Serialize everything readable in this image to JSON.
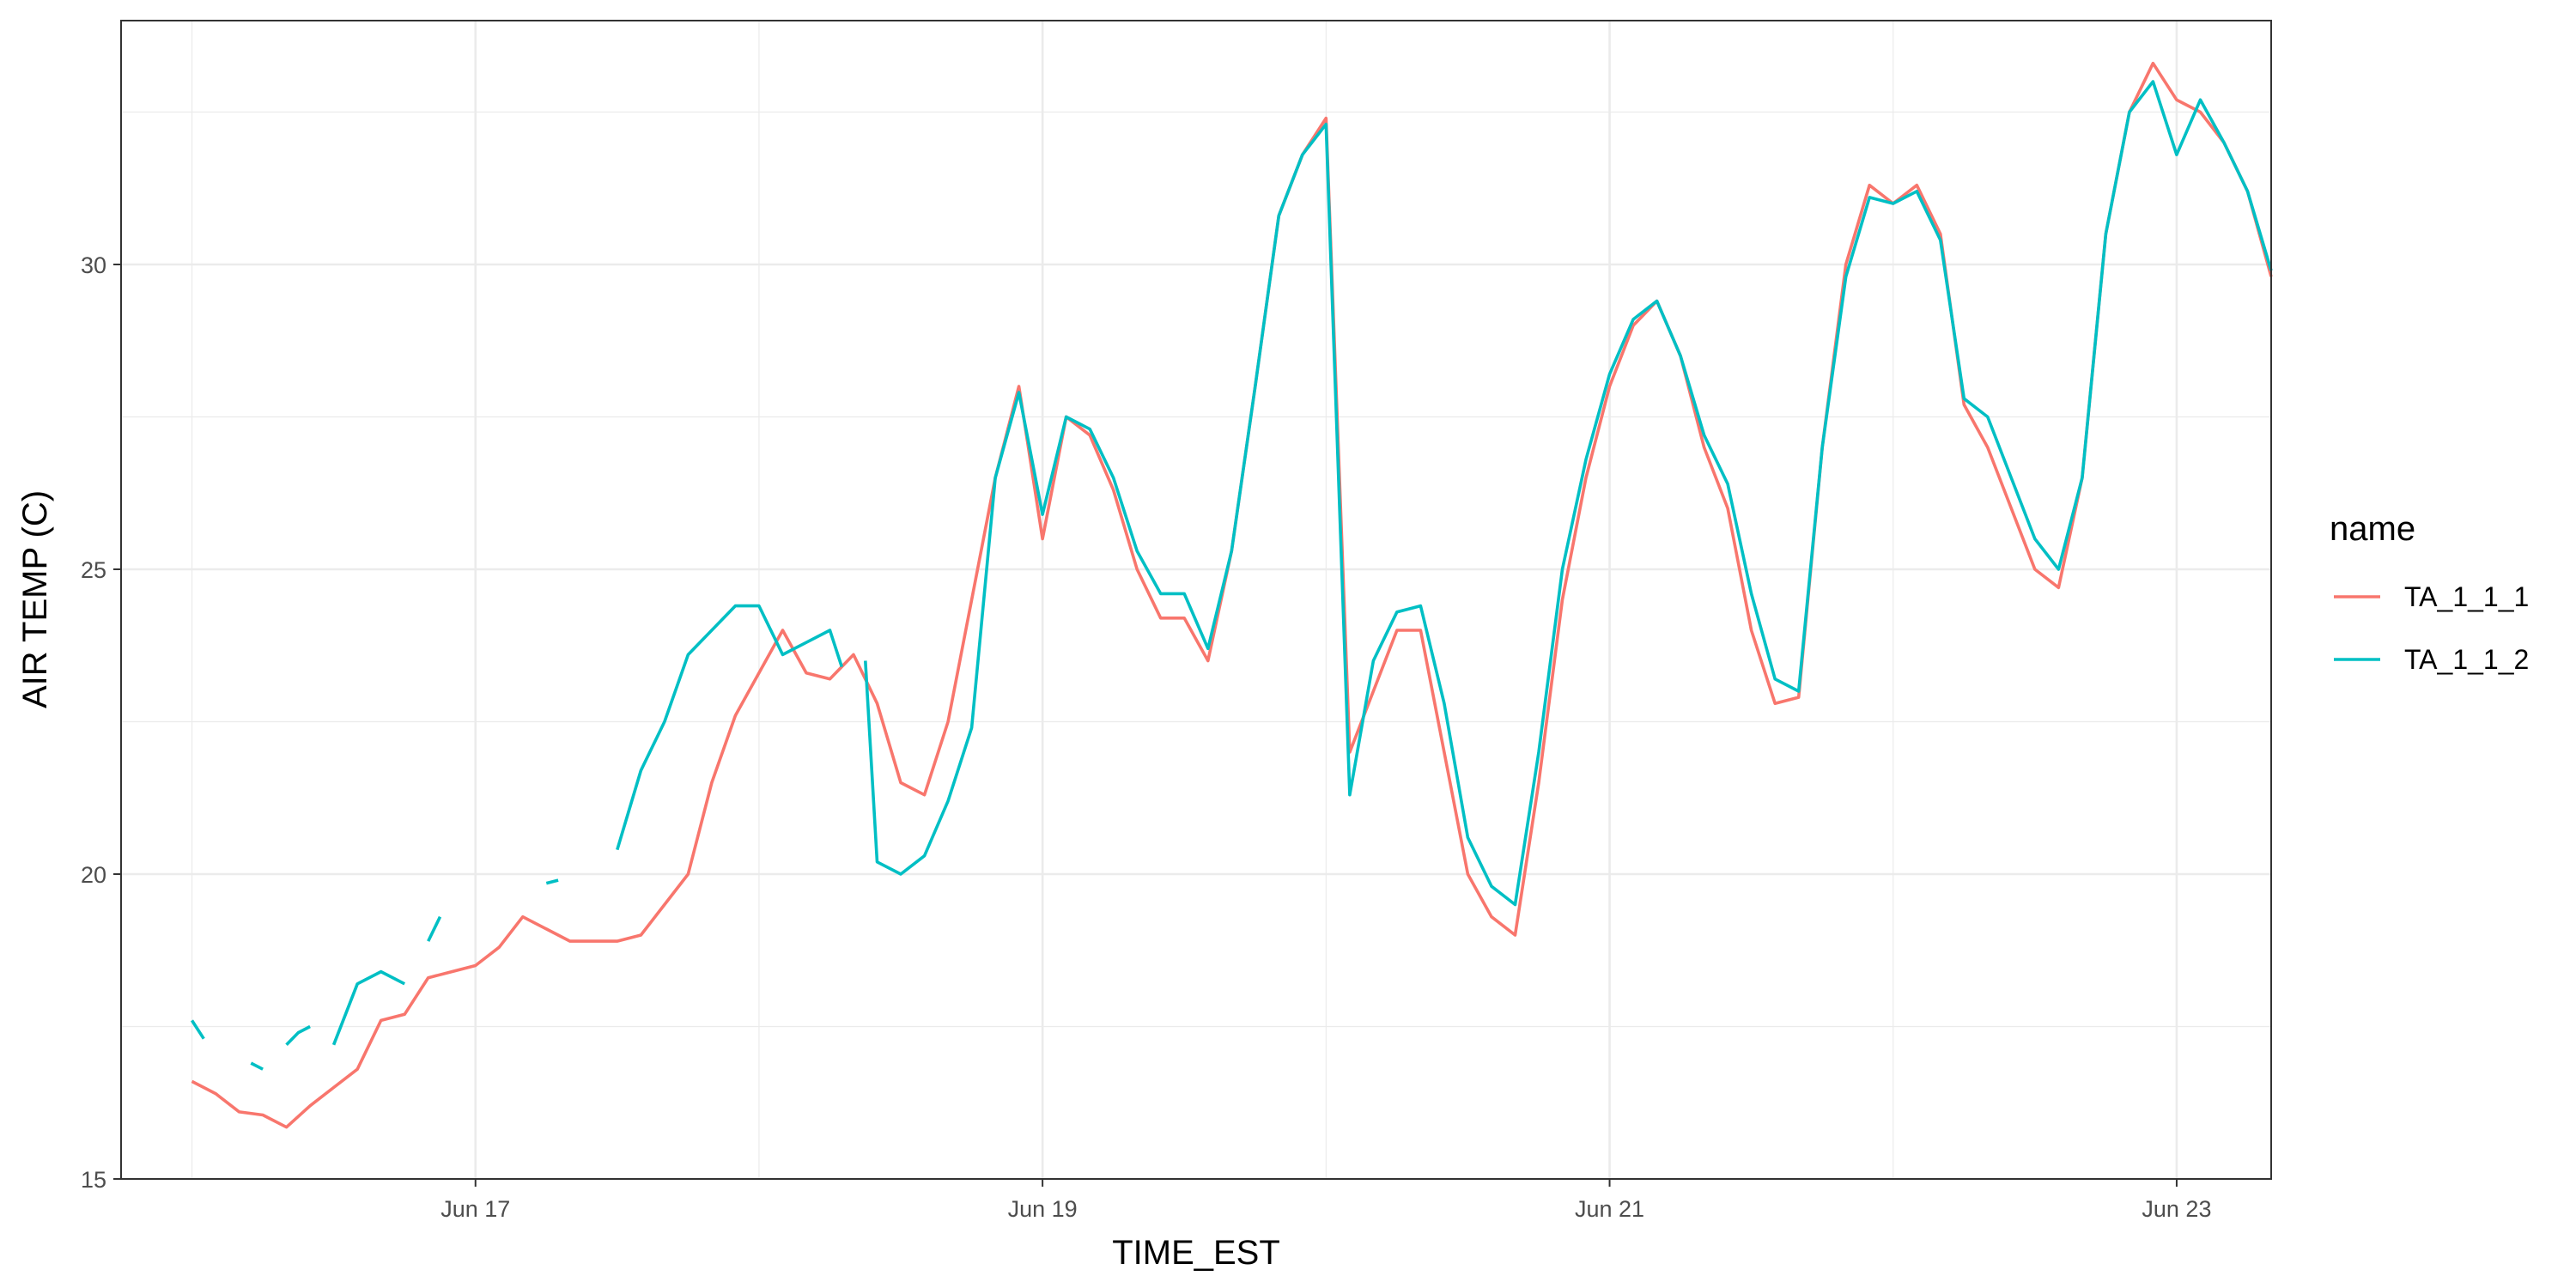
{
  "chart_data": {
    "type": "line",
    "title": "",
    "xlabel": "TIME_EST",
    "ylabel": "AIR TEMP (C)",
    "x_unit": "date",
    "x_ticks": [
      "Jun 17",
      "Jun 19",
      "Jun 21",
      "Jun 23"
    ],
    "y_ticks": [
      "15",
      "20",
      "25",
      "30"
    ],
    "ylim": [
      15,
      34
    ],
    "xlim": [
      "2023-06-15T18:00",
      "2023-06-23T08:00"
    ],
    "grid": true,
    "legend": {
      "title": "name",
      "placement": "right",
      "entries": [
        "TA_1_1_1",
        "TA_1_1_2"
      ]
    },
    "series": [
      {
        "name": "TA_1_1_1",
        "color": "#F8766D",
        "points": [
          [
            "2023-06-16T00:00",
            16.6
          ],
          [
            "2023-06-16T02:00",
            16.4
          ],
          [
            "2023-06-16T04:00",
            16.1
          ],
          [
            "2023-06-16T06:00",
            16.05
          ],
          [
            "2023-06-16T08:00",
            15.85
          ],
          [
            "2023-06-16T10:00",
            16.2
          ],
          [
            "2023-06-16T12:00",
            16.5
          ],
          [
            "2023-06-16T14:00",
            16.8
          ],
          [
            "2023-06-16T16:00",
            17.6
          ],
          [
            "2023-06-16T18:00",
            17.7
          ],
          [
            "2023-06-16T20:00",
            18.3
          ],
          [
            "2023-06-16T22:00",
            18.4
          ],
          [
            "2023-06-17T00:00",
            18.5
          ],
          [
            "2023-06-17T02:00",
            18.8
          ],
          [
            "2023-06-17T04:00",
            19.3
          ],
          [
            "2023-06-17T06:00",
            19.1
          ],
          [
            "2023-06-17T08:00",
            18.9
          ],
          [
            "2023-06-17T10:00",
            18.9
          ],
          [
            "2023-06-17T12:00",
            18.9
          ],
          [
            "2023-06-17T14:00",
            19.0
          ],
          [
            "2023-06-17T16:00",
            19.5
          ],
          [
            "2023-06-17T18:00",
            20.0
          ],
          [
            "2023-06-17T20:00",
            21.5
          ],
          [
            "2023-06-17T22:00",
            22.6
          ],
          [
            "2023-06-18T00:00",
            23.3
          ],
          [
            "2023-06-18T02:00",
            24.0
          ],
          [
            "2023-06-18T04:00",
            23.3
          ],
          [
            "2023-06-18T06:00",
            23.2
          ],
          [
            "2023-06-18T08:00",
            23.6
          ],
          [
            "2023-06-18T10:00",
            22.8
          ],
          [
            "2023-06-18T12:00",
            21.5
          ],
          [
            "2023-06-18T14:00",
            21.3
          ],
          [
            "2023-06-18T16:00",
            22.5
          ],
          [
            "2023-06-18T18:00",
            24.5
          ],
          [
            "2023-06-18T20:00",
            26.5
          ],
          [
            "2023-06-18T22:00",
            28.0
          ],
          [
            "2023-06-19T00:00",
            25.5
          ],
          [
            "2023-06-19T02:00",
            27.5
          ],
          [
            "2023-06-19T04:00",
            27.2
          ],
          [
            "2023-06-19T06:00",
            26.3
          ],
          [
            "2023-06-19T08:00",
            25.0
          ],
          [
            "2023-06-19T10:00",
            24.2
          ],
          [
            "2023-06-19T12:00",
            24.2
          ],
          [
            "2023-06-19T14:00",
            23.5
          ],
          [
            "2023-06-19T16:00",
            25.3
          ],
          [
            "2023-06-19T18:00",
            28.0
          ],
          [
            "2023-06-19T20:00",
            30.8
          ],
          [
            "2023-06-19T22:00",
            31.8
          ],
          [
            "2023-06-20T00:00",
            32.4
          ],
          [
            "2023-06-20T02:00",
            22.0
          ],
          [
            "2023-06-20T04:00",
            23.0
          ],
          [
            "2023-06-20T06:00",
            24.0
          ],
          [
            "2023-06-20T08:00",
            24.0
          ],
          [
            "2023-06-20T10:00",
            22.0
          ],
          [
            "2023-06-20T12:00",
            20.0
          ],
          [
            "2023-06-20T14:00",
            19.3
          ],
          [
            "2023-06-20T16:00",
            19.0
          ],
          [
            "2023-06-20T18:00",
            21.5
          ],
          [
            "2023-06-20T20:00",
            24.5
          ],
          [
            "2023-06-20T22:00",
            26.5
          ],
          [
            "2023-06-21T00:00",
            28.0
          ],
          [
            "2023-06-21T02:00",
            29.0
          ],
          [
            "2023-06-21T04:00",
            29.4
          ],
          [
            "2023-06-21T06:00",
            28.5
          ],
          [
            "2023-06-21T08:00",
            27.0
          ],
          [
            "2023-06-21T10:00",
            26.0
          ],
          [
            "2023-06-21T12:00",
            24.0
          ],
          [
            "2023-06-21T14:00",
            22.8
          ],
          [
            "2023-06-21T16:00",
            22.9
          ],
          [
            "2023-06-21T18:00",
            27.0
          ],
          [
            "2023-06-21T20:00",
            30.0
          ],
          [
            "2023-06-21T22:00",
            31.3
          ],
          [
            "2023-06-22T00:00",
            31.0
          ],
          [
            "2023-06-22T02:00",
            31.3
          ],
          [
            "2023-06-22T04:00",
            30.5
          ],
          [
            "2023-06-22T06:00",
            27.7
          ],
          [
            "2023-06-22T08:00",
            27.0
          ],
          [
            "2023-06-22T10:00",
            26.0
          ],
          [
            "2023-06-22T12:00",
            25.0
          ],
          [
            "2023-06-22T14:00",
            24.7
          ],
          [
            "2023-06-22T16:00",
            26.5
          ],
          [
            "2023-06-22T18:00",
            30.5
          ],
          [
            "2023-06-22T20:00",
            32.5
          ],
          [
            "2023-06-22T22:00",
            33.3
          ],
          [
            "2023-06-23T00:00",
            32.7
          ],
          [
            "2023-06-23T02:00",
            32.5
          ],
          [
            "2023-06-23T04:00",
            32.0
          ],
          [
            "2023-06-23T06:00",
            31.2
          ],
          [
            "2023-06-23T08:00",
            29.8
          ]
        ]
      },
      {
        "name": "TA_1_1_2",
        "color": "#00BFC4",
        "segments": [
          [
            [
              "2023-06-16T00:00",
              17.6
            ],
            [
              "2023-06-16T01:00",
              17.3
            ]
          ],
          [
            [
              "2023-06-16T05:00",
              16.9
            ],
            [
              "2023-06-16T06:00",
              16.8
            ]
          ],
          [
            [
              "2023-06-16T08:00",
              17.2
            ],
            [
              "2023-06-16T09:00",
              17.4
            ],
            [
              "2023-06-16T10:00",
              17.5
            ]
          ],
          [
            [
              "2023-06-16T12:00",
              17.2
            ],
            [
              "2023-06-16T14:00",
              18.2
            ],
            [
              "2023-06-16T16:00",
              18.4
            ],
            [
              "2023-06-16T18:00",
              18.2
            ]
          ],
          [
            [
              "2023-06-16T20:00",
              18.9
            ],
            [
              "2023-06-16T21:00",
              19.3
            ]
          ],
          [
            [
              "2023-06-17T06:00",
              19.85
            ],
            [
              "2023-06-17T07:00",
              19.9
            ]
          ],
          [
            [
              "2023-06-17T12:00",
              20.4
            ],
            [
              "2023-06-17T14:00",
              21.7
            ],
            [
              "2023-06-17T16:00",
              22.5
            ],
            [
              "2023-06-17T18:00",
              23.6
            ],
            [
              "2023-06-17T20:00",
              24.0
            ],
            [
              "2023-06-17T22:00",
              24.4
            ],
            [
              "2023-06-18T00:00",
              24.4
            ],
            [
              "2023-06-18T02:00",
              23.6
            ],
            [
              "2023-06-18T04:00",
              23.8
            ],
            [
              "2023-06-18T06:00",
              24.0
            ],
            [
              "2023-06-18T07:00",
              23.4
            ]
          ],
          [
            [
              "2023-06-18T09:00",
              23.5
            ],
            [
              "2023-06-18T10:00",
              20.2
            ],
            [
              "2023-06-18T12:00",
              20.0
            ],
            [
              "2023-06-18T14:00",
              20.3
            ],
            [
              "2023-06-18T16:00",
              21.2
            ],
            [
              "2023-06-18T18:00",
              22.4
            ],
            [
              "2023-06-18T20:00",
              26.5
            ],
            [
              "2023-06-18T22:00",
              27.9
            ],
            [
              "2023-06-19T00:00",
              25.9
            ],
            [
              "2023-06-19T02:00",
              27.5
            ],
            [
              "2023-06-19T04:00",
              27.3
            ],
            [
              "2023-06-19T06:00",
              26.5
            ],
            [
              "2023-06-19T08:00",
              25.3
            ],
            [
              "2023-06-19T10:00",
              24.6
            ],
            [
              "2023-06-19T12:00",
              24.6
            ],
            [
              "2023-06-19T14:00",
              23.7
            ],
            [
              "2023-06-19T16:00",
              25.3
            ],
            [
              "2023-06-19T18:00",
              28.0
            ],
            [
              "2023-06-19T20:00",
              30.8
            ],
            [
              "2023-06-19T22:00",
              31.8
            ],
            [
              "2023-06-20T00:00",
              32.3
            ],
            [
              "2023-06-20T02:00",
              21.3
            ],
            [
              "2023-06-20T04:00",
              23.5
            ],
            [
              "2023-06-20T06:00",
              24.3
            ],
            [
              "2023-06-20T08:00",
              24.4
            ],
            [
              "2023-06-20T10:00",
              22.8
            ],
            [
              "2023-06-20T12:00",
              20.6
            ],
            [
              "2023-06-20T14:00",
              19.8
            ],
            [
              "2023-06-20T16:00",
              19.5
            ],
            [
              "2023-06-20T18:00",
              22.0
            ],
            [
              "2023-06-20T20:00",
              25.0
            ],
            [
              "2023-06-20T22:00",
              26.8
            ],
            [
              "2023-06-21T00:00",
              28.2
            ],
            [
              "2023-06-21T02:00",
              29.1
            ],
            [
              "2023-06-21T04:00",
              29.4
            ],
            [
              "2023-06-21T06:00",
              28.5
            ],
            [
              "2023-06-21T08:00",
              27.2
            ],
            [
              "2023-06-21T10:00",
              26.4
            ],
            [
              "2023-06-21T12:00",
              24.6
            ],
            [
              "2023-06-21T14:00",
              23.2
            ],
            [
              "2023-06-21T16:00",
              23.0
            ],
            [
              "2023-06-21T18:00",
              27.0
            ],
            [
              "2023-06-21T20:00",
              29.8
            ],
            [
              "2023-06-21T22:00",
              31.1
            ],
            [
              "2023-06-22T00:00",
              31.0
            ],
            [
              "2023-06-22T02:00",
              31.2
            ],
            [
              "2023-06-22T04:00",
              30.4
            ],
            [
              "2023-06-22T06:00",
              27.8
            ],
            [
              "2023-06-22T08:00",
              27.5
            ],
            [
              "2023-06-22T10:00",
              26.5
            ],
            [
              "2023-06-22T12:00",
              25.5
            ],
            [
              "2023-06-22T14:00",
              25.0
            ],
            [
              "2023-06-22T16:00",
              26.5
            ],
            [
              "2023-06-22T18:00",
              30.5
            ],
            [
              "2023-06-22T20:00",
              32.5
            ],
            [
              "2023-06-22T22:00",
              33.0
            ],
            [
              "2023-06-23T00:00",
              31.8
            ],
            [
              "2023-06-23T02:00",
              32.7
            ],
            [
              "2023-06-23T04:00",
              32.0
            ],
            [
              "2023-06-23T06:00",
              31.2
            ],
            [
              "2023-06-23T08:00",
              29.9
            ]
          ]
        ]
      }
    ]
  }
}
